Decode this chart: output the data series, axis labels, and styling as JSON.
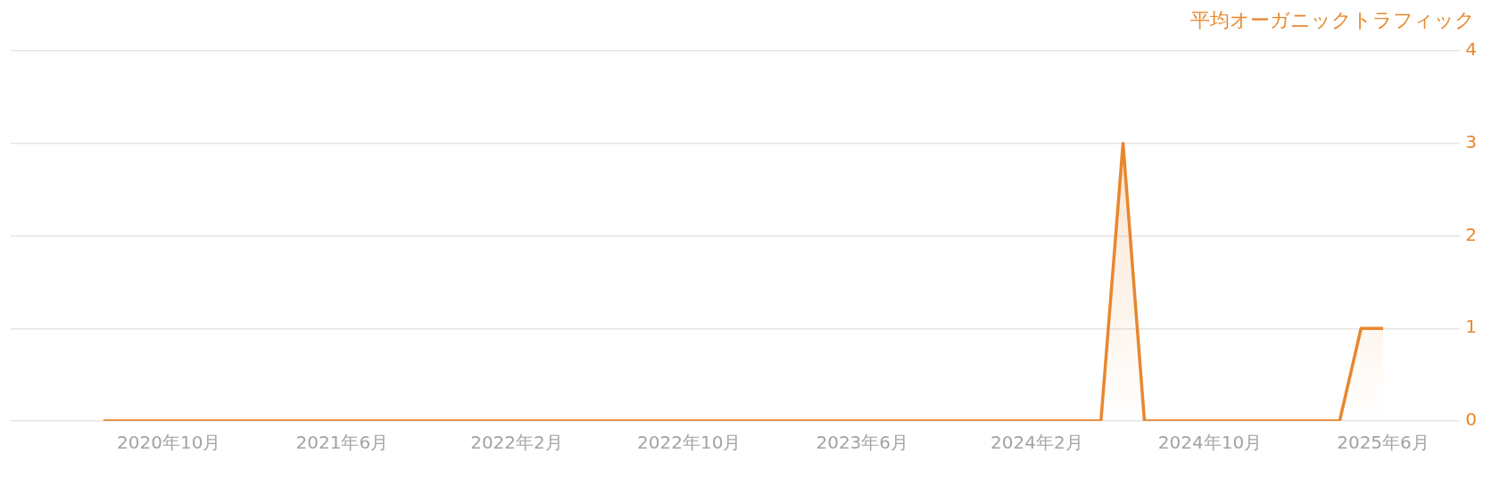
{
  "chart_data": {
    "type": "area",
    "ylabel": "平均オーガニックトラフィック",
    "x": [
      "2020-07",
      "2020-08",
      "2020-09",
      "2020-10",
      "2020-11",
      "2020-12",
      "2021-01",
      "2021-02",
      "2021-03",
      "2021-04",
      "2021-05",
      "2021-06",
      "2021-07",
      "2021-08",
      "2021-09",
      "2021-10",
      "2021-11",
      "2021-12",
      "2022-01",
      "2022-02",
      "2022-03",
      "2022-04",
      "2022-05",
      "2022-06",
      "2022-07",
      "2022-08",
      "2022-09",
      "2022-10",
      "2022-11",
      "2022-12",
      "2023-01",
      "2023-02",
      "2023-03",
      "2023-04",
      "2023-05",
      "2023-06",
      "2023-07",
      "2023-08",
      "2023-09",
      "2023-10",
      "2023-11",
      "2023-12",
      "2024-01",
      "2024-02",
      "2024-03",
      "2024-04",
      "2024-05",
      "2024-06",
      "2024-07",
      "2024-08",
      "2024-09",
      "2024-10",
      "2024-11",
      "2024-12",
      "2025-01",
      "2025-02",
      "2025-03",
      "2025-04",
      "2025-05",
      "2025-06"
    ],
    "values": [
      0,
      0,
      0,
      0,
      0,
      0,
      0,
      0,
      0,
      0,
      0,
      0,
      0,
      0,
      0,
      0,
      0,
      0,
      0,
      0,
      0,
      0,
      0,
      0,
      0,
      0,
      0,
      0,
      0,
      0,
      0,
      0,
      0,
      0,
      0,
      0,
      0,
      0,
      0,
      0,
      0,
      0,
      0,
      0,
      0,
      0,
      0,
      3,
      0,
      0,
      0,
      0,
      0,
      0,
      0,
      0,
      0,
      0,
      1,
      1
    ],
    "color": "#e8872f",
    "xlim": [
      "2020-02-22",
      "2025-10-08"
    ],
    "xticks": [
      {
        "value": "2020-10",
        "label": "2020年10月"
      },
      {
        "value": "2021-06",
        "label": "2021年6月"
      },
      {
        "value": "2022-02",
        "label": "2022年2月"
      },
      {
        "value": "2022-10",
        "label": "2022年10月"
      },
      {
        "value": "2023-06",
        "label": "2023年6月"
      },
      {
        "value": "2024-02",
        "label": "2024年2月"
      },
      {
        "value": "2024-10",
        "label": "2024年10月"
      },
      {
        "value": "2025-06",
        "label": "2025年6月"
      }
    ],
    "ylim": [
      0,
      4
    ],
    "yticks": [
      0,
      1,
      2,
      3,
      4
    ],
    "grid": "y"
  }
}
